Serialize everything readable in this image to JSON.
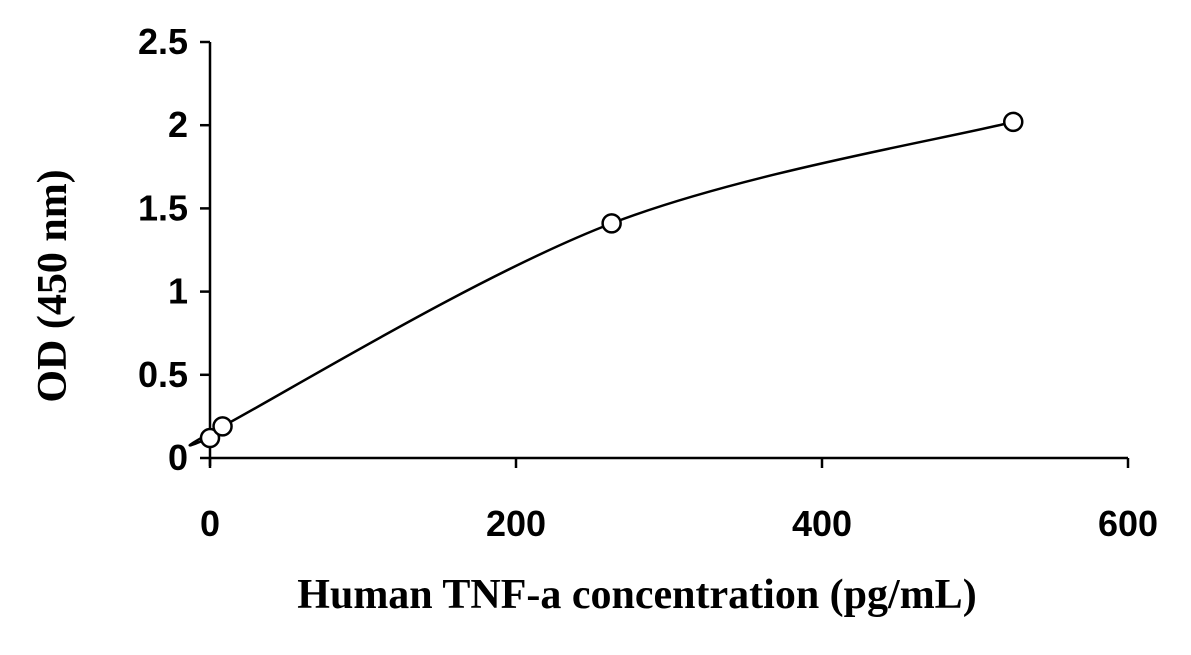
{
  "chart_data": {
    "type": "scatter",
    "title": "",
    "xlabel": "Human TNF-a concentration (pg/mL)",
    "ylabel": "OD (450 nm)",
    "xlim": [
      0,
      600
    ],
    "ylim": [
      0,
      2.5
    ],
    "xticks": [
      0,
      200,
      400,
      600
    ],
    "xtick_labels": [
      "0",
      "200",
      "400",
      "600"
    ],
    "yticks": [
      0,
      0.5,
      1,
      1.5,
      2,
      2.5
    ],
    "ytick_labels": [
      "0",
      "0.5",
      "1",
      "1.5",
      "2",
      "2.5"
    ],
    "grid": false,
    "legend": "none",
    "series": [
      {
        "marker": "open-circle",
        "trendline": "smooth",
        "x": [
          0,
          8.2,
          262.5,
          525
        ],
        "y": [
          0.12,
          0.19,
          1.41,
          2.02
        ]
      }
    ],
    "colors": {
      "line": "#000000",
      "marker_fill": "#ffffff",
      "marker_stroke": "#000000"
    }
  }
}
